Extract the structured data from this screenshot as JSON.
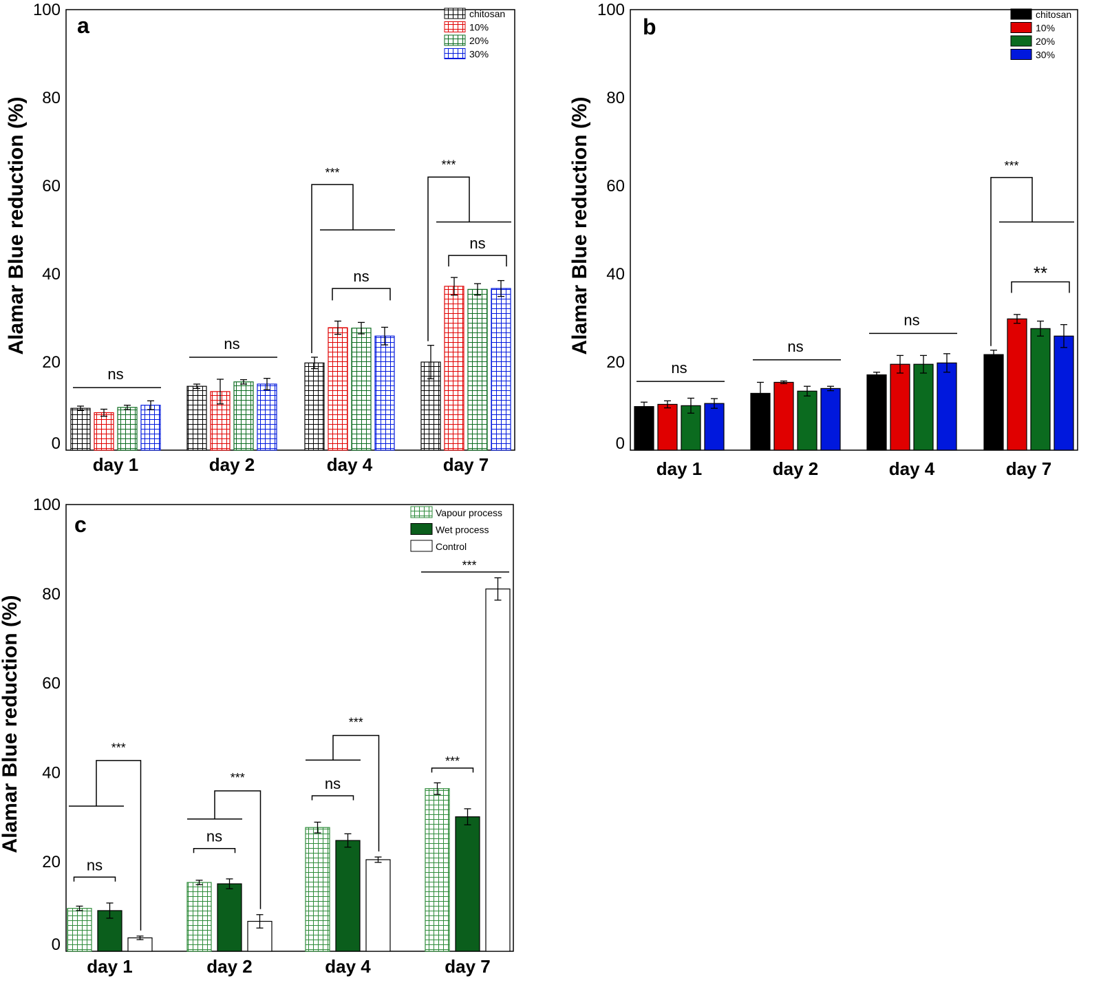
{
  "colors": {
    "chitosan": "#000000",
    "p10": "#e00000",
    "p20": "#0b6b1f",
    "p30": "#0018dd",
    "vapour": "#2e8b3a",
    "wet": "#0b5e1c",
    "control": "#ffffff"
  },
  "chart_data": [
    {
      "panel": "a",
      "type": "bar",
      "style": "hatched-grid",
      "ylabel": "Alamar Blue reduction (%)",
      "ylim": [
        0,
        100
      ],
      "yticks": [
        "0",
        "20",
        "40",
        "60",
        "80",
        "100"
      ],
      "categories": [
        "day 1",
        "day 2",
        "day 4",
        "day 7"
      ],
      "legend_position": "top-right",
      "series": [
        {
          "name": "chitosan",
          "color_key": "chitosan",
          "values": [
            9.5,
            14.5,
            19.8,
            20.0
          ],
          "errors": [
            0.5,
            0.5,
            1.3,
            3.8
          ]
        },
        {
          "name": "10%",
          "color_key": "p10",
          "values": [
            8.5,
            13.3,
            27.8,
            37.2
          ],
          "errors": [
            0.8,
            2.8,
            1.5,
            2.0
          ]
        },
        {
          "name": "20%",
          "color_key": "p20",
          "values": [
            9.7,
            15.5,
            27.7,
            36.5
          ],
          "errors": [
            0.5,
            0.5,
            1.3,
            1.3
          ]
        },
        {
          "name": "30%",
          "color_key": "p30",
          "values": [
            10.2,
            15.0,
            25.9,
            36.7
          ],
          "errors": [
            1.0,
            1.3,
            2.0,
            1.8
          ]
        }
      ],
      "annotations": [
        {
          "text": "ns",
          "day": 0,
          "kind": "line",
          "y": 14.2
        },
        {
          "text": "ns",
          "day": 1,
          "kind": "line",
          "y": 21.1
        },
        {
          "text": "ns",
          "day": 2,
          "kind": "bracket",
          "from": 1,
          "to": 3,
          "y": 36.7,
          "drop": 2.7
        },
        {
          "text": "***",
          "day": 2,
          "kind": "step",
          "y1": 60.3,
          "y2": 50.0,
          "text_y": 63
        },
        {
          "text": "ns",
          "day": 3,
          "kind": "bracket",
          "from": 1,
          "to": 3,
          "y": 44.2,
          "drop": 2.5
        },
        {
          "text": "***",
          "day": 3,
          "kind": "step",
          "y1": 62.0,
          "y2": 51.8,
          "text_y": 64.8
        }
      ]
    },
    {
      "panel": "b",
      "type": "bar",
      "style": "solid",
      "ylabel": "Alamar Blue reduction (%)",
      "ylim": [
        0,
        100
      ],
      "yticks": [
        "0",
        "20",
        "40",
        "60",
        "80",
        "100"
      ],
      "categories": [
        "day 1",
        "day 2",
        "day 4",
        "day 7"
      ],
      "legend_position": "top-right",
      "series": [
        {
          "name": "chitosan",
          "color_key": "chitosan",
          "values": [
            9.9,
            12.9,
            17.1,
            21.7
          ],
          "errors": [
            1.0,
            2.5,
            0.6,
            1.0
          ]
        },
        {
          "name": "10%",
          "color_key": "p10",
          "values": [
            10.4,
            15.4,
            19.5,
            29.8
          ],
          "errors": [
            0.8,
            0.3,
            2.0,
            1.0
          ]
        },
        {
          "name": "20%",
          "color_key": "p20",
          "values": [
            10.1,
            13.4,
            19.5,
            27.6
          ],
          "errors": [
            1.7,
            1.1,
            2.0,
            1.7
          ]
        },
        {
          "name": "30%",
          "color_key": "p30",
          "values": [
            10.6,
            14.0,
            19.8,
            25.9
          ],
          "errors": [
            1.1,
            0.5,
            2.1,
            2.6
          ]
        }
      ],
      "annotations": [
        {
          "text": "ns",
          "day": 0,
          "kind": "line",
          "y": 15.6
        },
        {
          "text": "ns",
          "day": 1,
          "kind": "line",
          "y": 20.5
        },
        {
          "text": "ns",
          "day": 2,
          "kind": "line",
          "y": 26.5
        },
        {
          "text": "**",
          "day": 3,
          "kind": "bracket",
          "from": 1,
          "to": 3,
          "y": 38.2,
          "drop": 2.5
        },
        {
          "text": "***",
          "day": 3,
          "kind": "step",
          "y1": 61.9,
          "y2": 51.8,
          "text_y": 64.5
        }
      ]
    },
    {
      "panel": "c",
      "type": "bar",
      "style": "mixed",
      "ylabel": "Alamar Blue reduction (%)",
      "ylim": [
        0,
        100
      ],
      "yticks": [
        "0",
        "20",
        "40",
        "60",
        "80",
        "100"
      ],
      "categories": [
        "day 1",
        "day 2",
        "day 4",
        "day 7"
      ],
      "legend_position": "top-right",
      "series": [
        {
          "name": "Vapour process",
          "color_key": "vapour",
          "fill": "hatched",
          "values": [
            9.6,
            15.4,
            27.7,
            36.4
          ],
          "errors": [
            0.5,
            0.5,
            1.2,
            1.3
          ]
        },
        {
          "name": "Wet process",
          "color_key": "wet",
          "fill": "solid",
          "values": [
            9.1,
            15.1,
            24.8,
            30.1
          ],
          "errors": [
            1.7,
            1.1,
            1.5,
            1.8
          ]
        },
        {
          "name": "Control",
          "color_key": "control",
          "fill": "outline",
          "values": [
            3.0,
            6.7,
            20.5,
            81.1
          ],
          "errors": [
            0.4,
            1.5,
            0.6,
            2.5
          ]
        }
      ],
      "annotations": [
        {
          "text": "ns",
          "day": 0,
          "kind": "bracket",
          "from": 0,
          "to": 1,
          "y": 16.6,
          "drop": 1.0
        },
        {
          "text": "***",
          "day": 0,
          "kind": "step3",
          "left": -0.35,
          "y1": 32.5,
          "y2": 42.7,
          "text_y": 45.5
        },
        {
          "text": "ns",
          "day": 1,
          "kind": "bracket",
          "from": 0,
          "to": 1,
          "y": 23.0,
          "drop": 1.0
        },
        {
          "text": "***",
          "day": 1,
          "kind": "step3",
          "left": -0.35,
          "y1": 29.6,
          "y2": 35.9,
          "text_y": 38.8
        },
        {
          "text": "ns",
          "day": 2,
          "kind": "bracket",
          "from": 0,
          "to": 1,
          "y": 34.8,
          "drop": 1.0
        },
        {
          "text": "***",
          "day": 2,
          "kind": "step3",
          "left": -0.35,
          "y1": 42.8,
          "y2": 48.3,
          "text_y": 51.2
        },
        {
          "text": "***",
          "day": 3,
          "kind": "bracket",
          "from": 0,
          "to": 1,
          "y": 41.0,
          "drop": 1.0
        },
        {
          "text": "***",
          "day": 3,
          "kind": "topline",
          "y": 84.9,
          "text_y": 86.4
        }
      ]
    }
  ]
}
